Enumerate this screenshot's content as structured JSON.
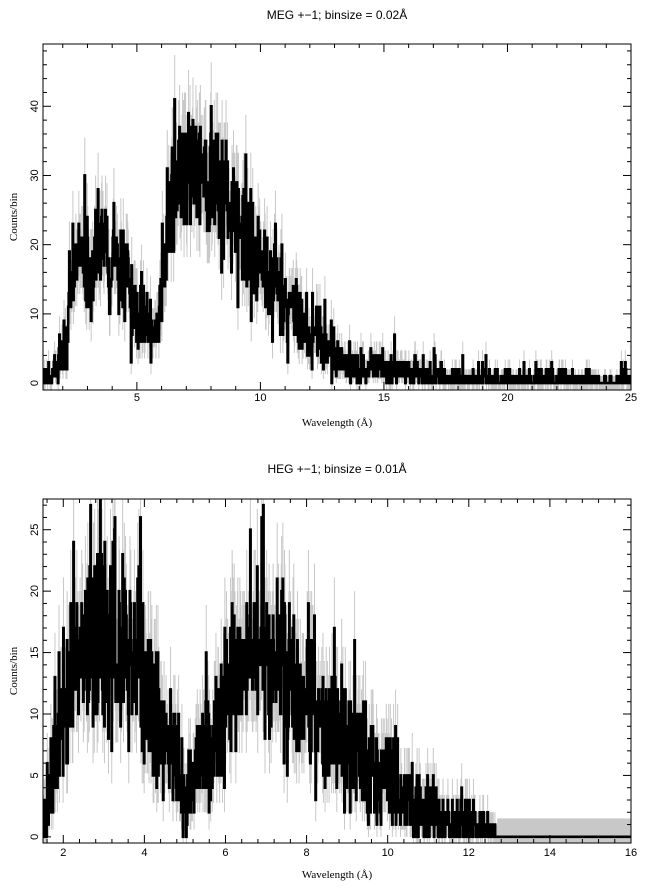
{
  "chart_data": [
    {
      "type": "line",
      "title": "MEG +−1; binsize = 0.02Å",
      "xlabel": "Wavelength (Å)",
      "ylabel": "Counts/bin",
      "xlim": [
        1.2,
        25
      ],
      "ylim": [
        -1,
        49
      ],
      "xticks": [
        5,
        10,
        15,
        20,
        25
      ],
      "xtick_labels": [
        "5",
        "10",
        "15",
        "20",
        "25"
      ],
      "yticks": [
        0,
        10,
        20,
        30,
        40
      ],
      "ytick_labels": [
        "0",
        "10",
        "20",
        "30",
        "40"
      ],
      "binsize": 0.02,
      "grid": false,
      "series": [
        {
          "role": "counts",
          "color": "#000000",
          "envelope": {
            "x": [
              1.2,
              1.5,
              1.8,
              2.0,
              2.2,
              2.4,
              2.7,
              3.0,
              3.3,
              3.6,
              3.9,
              4.2,
              4.5,
              4.8,
              5.1,
              5.4,
              5.7,
              5.9,
              6.1,
              6.4,
              6.7,
              7.0,
              7.3,
              7.6,
              7.9,
              8.2,
              8.5,
              8.8,
              9.1,
              9.5,
              10.0,
              10.5,
              11.0,
              11.5,
              12.0,
              12.5,
              13.0,
              13.5,
              14.0,
              15.0,
              16.0,
              17.0,
              18.0,
              19.0,
              20.0,
              21.0,
              22.0,
              23.0,
              24.0,
              25.0
            ],
            "y": [
              0.5,
              1,
              2,
              4,
              9,
              15,
              17,
              18,
              19,
              20,
              18,
              17,
              16,
              14,
              11,
              9,
              8,
              10,
              19,
              26,
              29,
              30,
              31,
              32,
              31,
              30,
              28,
              26,
              24,
              21,
              18,
              15,
              12,
              9,
              7,
              5,
              4,
              3,
              2.5,
              2,
              1.5,
              1.2,
              1,
              0.8,
              0.6,
              0.5,
              0.5,
              0.4,
              0.4,
              0.4
            ]
          }
        }
      ],
      "error_color": "#c8c8c8"
    },
    {
      "type": "line",
      "title": "HEG +−1; binsize = 0.01Å",
      "xlabel": "Wavelength (Å)",
      "ylabel": "Counts/bin",
      "xlim": [
        1.5,
        16
      ],
      "ylim": [
        -0.5,
        27.5
      ],
      "xticks": [
        2,
        4,
        6,
        8,
        10,
        12,
        14,
        16
      ],
      "xtick_labels": [
        "2",
        "4",
        "6",
        "8",
        "10",
        "12",
        "14",
        "16"
      ],
      "yticks": [
        0,
        5,
        10,
        15,
        20,
        25
      ],
      "ytick_labels": [
        "0",
        "5",
        "10",
        "15",
        "20",
        "25"
      ],
      "binsize": 0.01,
      "grid": false,
      "series": [
        {
          "role": "counts",
          "color": "#000000",
          "envelope": {
            "x": [
              1.5,
              1.6,
              1.8,
              2.0,
              2.2,
              2.4,
              2.6,
              2.8,
              3.0,
              3.2,
              3.4,
              3.6,
              3.8,
              4.0,
              4.2,
              4.4,
              4.6,
              4.8,
              5.0,
              5.2,
              5.4,
              5.6,
              5.8,
              6.0,
              6.2,
              6.4,
              6.6,
              6.8,
              7.0,
              7.2,
              7.4,
              7.6,
              7.8,
              8.0,
              8.2,
              8.5,
              8.8,
              9.1,
              9.4,
              9.7,
              10.0,
              10.3,
              10.6,
              11.0,
              11.4,
              11.8,
              12.2,
              12.6,
              12.7,
              13.0,
              14.0,
              15.0,
              16.0
            ],
            "y": [
              1,
              2,
              6,
              10,
              13,
              15,
              16,
              16.5,
              17,
              16.5,
              16,
              14,
              13,
              12,
              11,
              9,
              7,
              5,
              4,
              5,
              6,
              7,
              8,
              12,
              14,
              14,
              15,
              15,
              16,
              15,
              14,
              13,
              12,
              11,
              10,
              9,
              8,
              7,
              6,
              5,
              4.5,
              3.5,
              2.5,
              2,
              1.5,
              1.2,
              1,
              0.8,
              0,
              0,
              0,
              0,
              0
            ]
          }
        }
      ],
      "error_color": "#c8c8c8"
    }
  ]
}
